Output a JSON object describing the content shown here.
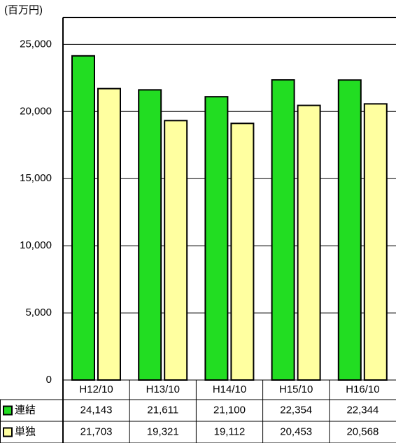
{
  "chart_data": {
    "type": "bar",
    "y_label": "(百万円)",
    "categories": [
      "H12/10",
      "H13/10",
      "H14/10",
      "H15/10",
      "H16/10"
    ],
    "series": [
      {
        "name": "連結",
        "color": "#22dd22",
        "values": [
          24143,
          21611,
          21100,
          22354,
          22344
        ],
        "value_labels": [
          "24,143",
          "21,611",
          "21,100",
          "22,354",
          "22,344"
        ]
      },
      {
        "name": "単独",
        "color": "#ffffa0",
        "values": [
          21703,
          19321,
          19112,
          20453,
          20568
        ],
        "value_labels": [
          "21,703",
          "19,321",
          "19,112",
          "20,453",
          "20,568"
        ]
      }
    ],
    "ylim": [
      0,
      27000
    ],
    "yticks": [
      0,
      {
        "value": 5000,
        "label": "5,000"
      },
      {
        "value": 10000,
        "label": "10,000"
      },
      {
        "value": 15000,
        "label": "15,000"
      },
      {
        "value": 20000,
        "label": "20,000"
      },
      {
        "value": 25000,
        "label": "25,000"
      }
    ],
    "grid": true
  }
}
